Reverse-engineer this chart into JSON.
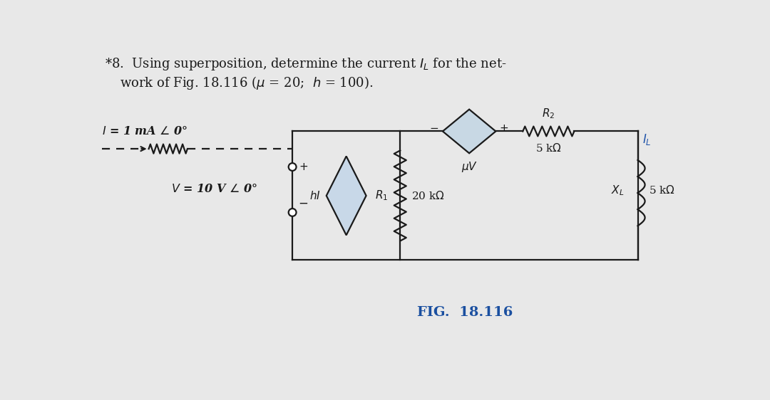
{
  "bg_color": "#e8e8e8",
  "lc": "#1a1a1a",
  "blue": "#2255aa",
  "diamond_fill": "#c8d8e8",
  "text_color": "#1a1a1a",
  "fig_label_color": "#1a4fa0"
}
